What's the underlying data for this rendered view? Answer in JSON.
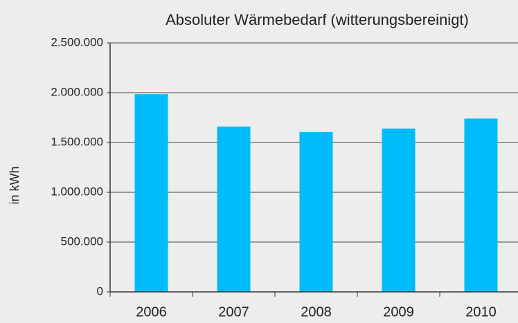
{
  "chart_data": {
    "type": "bar",
    "title": "Absoluter Wärmebedarf (witterungsbereinigt)",
    "y_label": "in kWh",
    "categories": [
      "2006",
      "2007",
      "2008",
      "2009",
      "2010"
    ],
    "values": [
      1985000,
      1660000,
      1605000,
      1640000,
      1740000
    ],
    "color": "#00bbf9",
    "ylim": [
      0,
      2500000
    ],
    "yticks": [
      0,
      {
        "value": 500000,
        "label": "500.000"
      },
      {
        "value": 1000000,
        "label": "1.000.000"
      },
      {
        "value": 1500000,
        "label": "1.500.000"
      },
      {
        "value": 2000000,
        "label": "2.000.000"
      },
      {
        "value": 2500000,
        "label": "2.500.000"
      }
    ],
    "grid": true
  }
}
